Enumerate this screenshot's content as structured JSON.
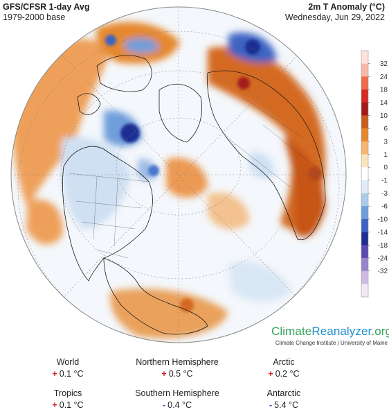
{
  "header": {
    "title_left": "GFS/CFSR 1-day Avg",
    "subtitle_left": "1979-2000 base",
    "title_right": "2m T Anomaly (°C)",
    "date_right": "Wednesday, Jun 29, 2022"
  },
  "legend": {
    "ticks": [
      "32",
      "24",
      "18",
      "14",
      "10",
      "6",
      "3",
      "1",
      "0",
      "-1",
      "-3",
      "-6",
      "-10",
      "-14",
      "-18",
      "-24",
      "-32"
    ],
    "colors": [
      "#ffe2de",
      "#f9b7a8",
      "#f06a4c",
      "#d42b23",
      "#a31c1b",
      "#c95d1b",
      "#e5882d",
      "#f5b672",
      "#fbe3c0",
      "#ffffff",
      "#dfeaf6",
      "#aecbea",
      "#6f9edb",
      "#3d63c2",
      "#1f2d92",
      "#5d49b0",
      "#9a82cc",
      "#cdb9e2",
      "#f2e8f3"
    ]
  },
  "logo": {
    "part1": "Climate",
    "part2": "Reanalyzer",
    "part3": ".org",
    "sub": "Climate Change Institute | University of Maine"
  },
  "stats": [
    {
      "label": "World",
      "sign": "+",
      "value": "0.1 °C"
    },
    {
      "label": "Northern Hemisphere",
      "sign": "+",
      "value": "0.5 °C"
    },
    {
      "label": "Arctic",
      "sign": "+",
      "value": "0.2 °C"
    },
    {
      "label": "Tropics",
      "sign": "+",
      "value": "0.1 °C"
    },
    {
      "label": "Southern Hemisphere",
      "sign": "-",
      "value": "0.4 °C"
    },
    {
      "label": "Antarctic",
      "sign": "-",
      "value": "5.4 °C"
    }
  ],
  "colors": {
    "warm": "#e5882d",
    "cold": "#3d63c2",
    "positive_sign": "#d01c1c",
    "negative_sign": "#2b4fb0",
    "brand_green": "#37a35a",
    "brand_blue": "#1f8fcf"
  }
}
